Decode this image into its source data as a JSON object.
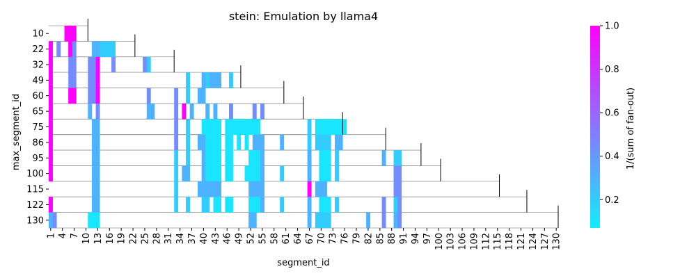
{
  "chart_data": {
    "type": "heatmap",
    "title": "stein: Emulation by llama4",
    "xlabel": "segment_id",
    "ylabel": "max_segment_id",
    "colorbar_label": "1/(sum of fan-out)",
    "colormap": "cool",
    "colorbar_range": [
      0.07,
      1.0
    ],
    "colorbar_ticks": [
      "0.2",
      "0.4",
      "0.6",
      "0.8",
      "1.0"
    ],
    "x_range": [
      1,
      130
    ],
    "x_ticks": [
      "1",
      "4",
      "7",
      "10",
      "13",
      "16",
      "19",
      "22",
      "25",
      "28",
      "31",
      "34",
      "37",
      "40",
      "43",
      "46",
      "49",
      "52",
      "55",
      "58",
      "61",
      "64",
      "67",
      "70",
      "73",
      "76",
      "79",
      "82",
      "85",
      "88",
      "91",
      "94",
      "97",
      "100",
      "103",
      "106",
      "109",
      "112",
      "115",
      "118",
      "121",
      "124",
      "127",
      "130"
    ],
    "y_labels": [
      "10",
      "22",
      "32",
      "49",
      "60",
      "65",
      "75",
      "86",
      "95",
      "100",
      "115",
      "122",
      "130"
    ],
    "cells": [
      {
        "row": "10",
        "segments": [
          [
            5,
            7,
            1.0
          ]
        ]
      },
      {
        "row": "22",
        "segments": [
          [
            1,
            1,
            1.0
          ],
          [
            3,
            3,
            0.45
          ],
          [
            6,
            6,
            1.0
          ],
          [
            7,
            7,
            0.45
          ],
          [
            12,
            12,
            0.3
          ],
          [
            13,
            13,
            0.3
          ],
          [
            14,
            17,
            0.2
          ]
        ]
      },
      {
        "row": "32",
        "segments": [
          [
            1,
            1,
            1.0
          ],
          [
            6,
            7,
            0.45
          ],
          [
            11,
            12,
            0.45
          ],
          [
            13,
            13,
            1.0
          ],
          [
            17,
            17,
            0.45
          ],
          [
            25,
            25,
            0.45
          ],
          [
            26,
            26,
            0.2
          ]
        ]
      },
      {
        "row": "49",
        "segments": [
          [
            1,
            1,
            1.0
          ],
          [
            6,
            7,
            0.45
          ],
          [
            11,
            12,
            0.45
          ],
          [
            13,
            13,
            1.0
          ],
          [
            36,
            36,
            0.2
          ],
          [
            40,
            40,
            0.3
          ],
          [
            41,
            41,
            0.2
          ],
          [
            42,
            44,
            0.3
          ],
          [
            47,
            47,
            0.2
          ]
        ]
      },
      {
        "row": "60",
        "segments": [
          [
            1,
            1,
            1.0
          ],
          [
            6,
            7,
            1.0
          ],
          [
            11,
            12,
            0.45
          ],
          [
            13,
            13,
            1.0
          ],
          [
            26,
            26,
            0.45
          ],
          [
            33,
            33,
            0.45
          ],
          [
            36,
            36,
            0.2
          ],
          [
            39,
            40,
            0.3
          ]
        ]
      },
      {
        "row": "65",
        "segments": [
          [
            1,
            1,
            1.0
          ],
          [
            11,
            11,
            0.3
          ],
          [
            13,
            13,
            0.45
          ],
          [
            26,
            27,
            0.3
          ],
          [
            33,
            33,
            0.45
          ],
          [
            35,
            35,
            1.0
          ],
          [
            37,
            37,
            0.3
          ],
          [
            41,
            41,
            0.3
          ],
          [
            43,
            43,
            0.3
          ],
          [
            47,
            47,
            0.45
          ],
          [
            53,
            53,
            0.45
          ],
          [
            55,
            55,
            0.45
          ]
        ]
      },
      {
        "row": "75",
        "segments": [
          [
            1,
            1,
            1.0
          ],
          [
            12,
            13,
            0.3
          ],
          [
            33,
            33,
            0.45
          ],
          [
            36,
            36,
            0.2
          ],
          [
            40,
            44,
            0.1
          ],
          [
            46,
            54,
            0.1
          ],
          [
            67,
            67,
            0.2
          ],
          [
            69,
            76,
            0.1
          ]
        ]
      },
      {
        "row": "86",
        "segments": [
          [
            1,
            1,
            1.0
          ],
          [
            12,
            13,
            0.3
          ],
          [
            33,
            33,
            0.45
          ],
          [
            36,
            36,
            0.2
          ],
          [
            39,
            40,
            0.3
          ],
          [
            41,
            44,
            0.1
          ],
          [
            46,
            47,
            0.1
          ],
          [
            49,
            49,
            0.1
          ],
          [
            51,
            51,
            0.1
          ],
          [
            53,
            55,
            0.3
          ],
          [
            60,
            60,
            0.3
          ],
          [
            67,
            67,
            0.2
          ],
          [
            69,
            72,
            0.2
          ],
          [
            74,
            75,
            0.3
          ]
        ]
      },
      {
        "row": "95",
        "segments": [
          [
            1,
            1,
            1.0
          ],
          [
            12,
            13,
            0.3
          ],
          [
            33,
            33,
            0.2
          ],
          [
            36,
            36,
            0.2
          ],
          [
            40,
            40,
            0.3
          ],
          [
            41,
            44,
            0.1
          ],
          [
            46,
            47,
            0.1
          ],
          [
            52,
            54,
            0.1
          ],
          [
            55,
            55,
            0.3
          ],
          [
            67,
            67,
            0.3
          ],
          [
            70,
            72,
            0.1
          ],
          [
            74,
            74,
            0.2
          ],
          [
            86,
            86,
            0.3
          ],
          [
            89,
            90,
            0.2
          ]
        ]
      },
      {
        "row": "100",
        "segments": [
          [
            1,
            1,
            1.0
          ],
          [
            12,
            13,
            0.3
          ],
          [
            33,
            33,
            0.2
          ],
          [
            35,
            36,
            0.3
          ],
          [
            40,
            40,
            0.3
          ],
          [
            41,
            44,
            0.1
          ],
          [
            46,
            47,
            0.1
          ],
          [
            51,
            51,
            0.1
          ],
          [
            52,
            54,
            0.1
          ],
          [
            55,
            55,
            0.3
          ],
          [
            60,
            60,
            0.2
          ],
          [
            67,
            67,
            0.3
          ],
          [
            70,
            72,
            0.1
          ],
          [
            74,
            74,
            0.2
          ],
          [
            89,
            90,
            0.45
          ]
        ]
      },
      {
        "row": "115",
        "segments": [
          [
            12,
            13,
            0.3
          ],
          [
            33,
            33,
            0.2
          ],
          [
            39,
            44,
            0.3
          ],
          [
            52,
            55,
            0.3
          ],
          [
            67,
            67,
            1.0
          ],
          [
            69,
            71,
            0.3
          ],
          [
            89,
            90,
            0.45
          ]
        ]
      },
      {
        "row": "122",
        "segments": [
          [
            1,
            1,
            1.0
          ],
          [
            12,
            13,
            0.3
          ],
          [
            33,
            33,
            0.2
          ],
          [
            36,
            36,
            0.2
          ],
          [
            40,
            41,
            0.2
          ],
          [
            43,
            44,
            0.1
          ],
          [
            46,
            47,
            0.1
          ],
          [
            52,
            54,
            0.1
          ],
          [
            55,
            55,
            0.3
          ],
          [
            60,
            60,
            0.2
          ],
          [
            67,
            67,
            0.3
          ],
          [
            70,
            72,
            0.1
          ],
          [
            74,
            74,
            0.2
          ],
          [
            86,
            86,
            0.45
          ],
          [
            89,
            89,
            0.2
          ],
          [
            90,
            90,
            0.45
          ]
        ]
      },
      {
        "row": "130",
        "segments": [
          [
            1,
            1,
            0.3
          ],
          [
            2,
            2,
            0.45
          ],
          [
            11,
            13,
            0.1
          ],
          [
            52,
            53,
            0.3
          ],
          [
            67,
            67,
            0.3
          ],
          [
            69,
            72,
            0.2
          ],
          [
            82,
            82,
            0.3
          ],
          [
            86,
            86,
            0.45
          ],
          [
            89,
            89,
            0.3
          ],
          [
            90,
            90,
            0.45
          ]
        ]
      }
    ],
    "row_extents": [
      {
        "row": "10",
        "max": 10
      },
      {
        "row": "22",
        "max": 22
      },
      {
        "row": "32",
        "max": 32
      },
      {
        "row": "49",
        "max": 49
      },
      {
        "row": "60",
        "max": 60
      },
      {
        "row": "65",
        "max": 65
      },
      {
        "row": "75",
        "max": 75
      },
      {
        "row": "86",
        "max": 86
      },
      {
        "row": "95",
        "max": 95
      },
      {
        "row": "100",
        "max": 100
      },
      {
        "row": "115",
        "max": 115
      },
      {
        "row": "122",
        "max": 122
      },
      {
        "row": "130",
        "max": 130
      }
    ]
  }
}
